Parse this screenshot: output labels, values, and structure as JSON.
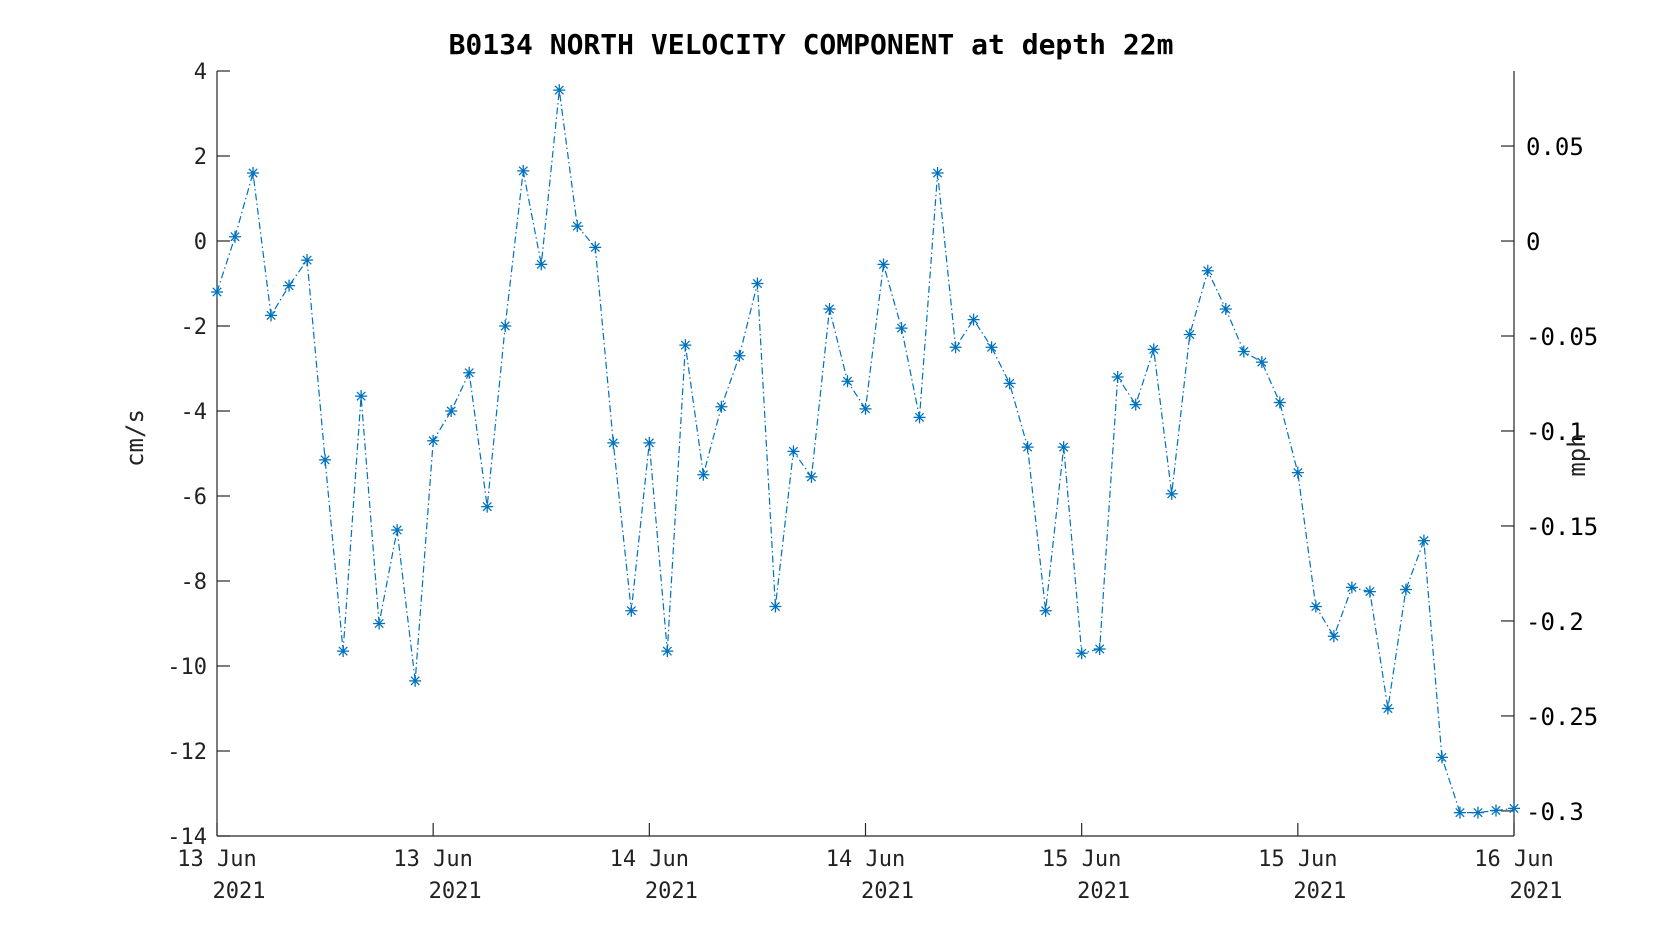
{
  "chart_data": {
    "type": "line",
    "title": "B0134 NORTH VELOCITY COMPONENT at depth 22m",
    "ylabel": "cm/s",
    "ylabel_right": "mph",
    "ylim": [
      -14,
      4
    ],
    "yticks": [
      4,
      2,
      0,
      -2,
      -4,
      -6,
      -8,
      -10,
      -12,
      -14
    ],
    "ylim_right": [
      -0.3132,
      0.0895
    ],
    "yticks_right": [
      0.05,
      0,
      -0.05,
      -0.1,
      -0.15,
      -0.2,
      -0.25,
      -0.3
    ],
    "yticks_right_labels": [
      "0.05",
      "0",
      "-0.05",
      "-0.1",
      "-0.15",
      "-0.2",
      "-0.25",
      "-0.3"
    ],
    "x_tick_labels": [
      [
        "13 Jun",
        "2021"
      ],
      [
        "13 Jun",
        "2021"
      ],
      [
        "14 Jun",
        "2021"
      ],
      [
        "14 Jun",
        "2021"
      ],
      [
        "15 Jun",
        "2021"
      ],
      [
        "15 Jun",
        "2021"
      ],
      [
        "16 Jun",
        "2021"
      ]
    ],
    "grid": false,
    "series": [
      {
        "color": "#0072BD",
        "line_style": "dash-dot",
        "marker": "asterisk",
        "values": [
          -1.2,
          0.1,
          1.6,
          -1.75,
          -1.05,
          -0.45,
          -5.15,
          -9.65,
          -3.65,
          -9.0,
          -6.8,
          -10.35,
          -4.7,
          -4.0,
          -3.1,
          -6.25,
          -2.0,
          1.65,
          -0.55,
          3.55,
          0.35,
          -0.15,
          -4.75,
          -8.7,
          -4.75,
          -9.65,
          -2.45,
          -5.5,
          -3.9,
          -2.7,
          -1.0,
          -8.6,
          -4.95,
          -5.55,
          -1.6,
          -3.3,
          -3.95,
          -0.55,
          -2.05,
          -4.15,
          1.6,
          -2.5,
          -1.85,
          -2.5,
          -3.35,
          -4.85,
          -8.7,
          -4.85,
          -9.7,
          -9.6,
          -3.2,
          -3.85,
          -2.55,
          -5.95,
          -2.2,
          -0.7,
          -1.6,
          -2.6,
          -2.85,
          -3.8,
          -5.45,
          -8.6,
          -9.3,
          -8.15,
          -8.25,
          -11.0,
          -8.2,
          -7.05,
          -12.15,
          -13.45,
          -13.45,
          -13.4,
          -13.35
        ]
      }
    ]
  }
}
